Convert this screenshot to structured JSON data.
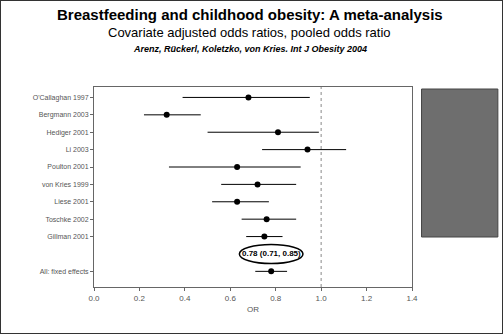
{
  "chart_data": {
    "type": "forest",
    "title": "Breastfeeding and childhood obesity: A meta-analysis",
    "subtitle": "Covariate adjusted odds ratios, pooled odds ratio",
    "source": "Arenz, Rückerl, Koletzko, von Kries. Int J Obesity 2004",
    "x_label": "OR",
    "categories": [
      "O'Callaghan 1997",
      "Bergmann 2003",
      "Hediger 2001",
      "Li 2003",
      "Poulton 2001",
      "von Kries 1999",
      "Liese 2001",
      "Toschke 2002",
      "Gillman 2001",
      null,
      "All: fixed effects"
    ],
    "values": [
      0.68,
      0.32,
      0.81,
      0.94,
      0.63,
      0.72,
      0.63,
      0.76,
      0.75,
      null,
      0.78
    ],
    "ci_lower": [
      0.39,
      0.22,
      0.5,
      0.74,
      0.33,
      0.56,
      0.52,
      0.65,
      0.67,
      null,
      0.71
    ],
    "ci_upper": [
      0.95,
      0.47,
      0.99,
      1.11,
      0.91,
      0.89,
      0.77,
      0.89,
      0.83,
      null,
      0.85
    ],
    "color": "#000000",
    "reference": 1,
    "xlim": [
      0,
      1.4
    ],
    "xticks": [
      {
        "value": 0,
        "label": "0.0"
      },
      {
        "value": 0.2,
        "label": "0.2"
      },
      {
        "value": 0.4,
        "label": "0.4"
      },
      {
        "value": 0.6,
        "label": "0.6"
      },
      {
        "value": 0.8,
        "label": "0.8"
      },
      {
        "value": 1,
        "label": "1.0"
      },
      {
        "value": 1.2,
        "label": "1.2"
      },
      {
        "value": 1.4,
        "label": "1.4"
      }
    ],
    "annotations": [
      {
        "text": "0.78 (0.71, 0.85)",
        "x": 0.78
      }
    ],
    "grid": false
  }
}
